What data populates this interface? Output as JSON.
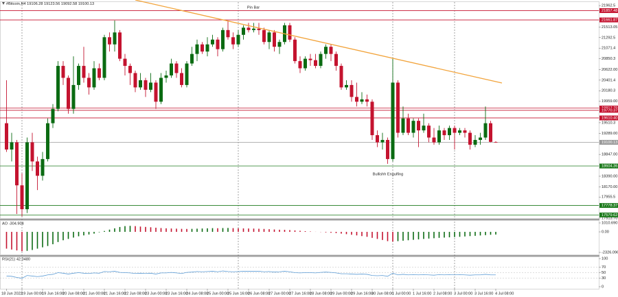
{
  "chart_data": [
    {
      "type": "candlestick",
      "title": "#Bitcoin,H4 19106.28 19123.56 19092.58 19100.13",
      "categories": [
        "18 Jun 2022",
        null,
        null,
        "19 Jun 00:00",
        null,
        null,
        null,
        "19 Jun 16:00",
        null,
        null,
        null,
        "20 Jun 08:00",
        null,
        null,
        null,
        "21 Jun 00:00",
        null,
        null,
        null,
        "21 Jun 16:00",
        null,
        null,
        null,
        "22 Jun 08:00",
        null,
        null,
        null,
        "23 Jun 00:00",
        null,
        null,
        null,
        "23 Jun 16:00",
        null,
        null,
        null,
        "24 Jun 08:00",
        null,
        null,
        null,
        "25 Jun 00:00",
        null,
        null,
        null,
        "25 Jun 16:00",
        null,
        null,
        null,
        "26 Jun 08:00",
        null,
        null,
        null,
        "27 Jun 00:00",
        null,
        null,
        null,
        "27 Jun 16:00",
        null,
        null,
        null,
        "28 Jun 08:00",
        null,
        null,
        null,
        "29 Jun 00:00",
        null,
        null,
        null,
        "29 Jun 16:00",
        null,
        null,
        null,
        "30 Jun 08:00",
        null,
        null,
        null,
        "1 Jul 00:00",
        null,
        null,
        null,
        "1 Jul 16:00",
        null,
        null,
        null,
        "2 Jul 08:00",
        null,
        null,
        null,
        "3 Jul 00:00",
        null,
        null,
        null,
        "3 Jul 16:00",
        null,
        null,
        null,
        "4 Jul 08:00"
      ],
      "open": [
        19500,
        18950,
        19100,
        18200,
        17700,
        19100,
        18700,
        18400,
        18750,
        19500,
        19800,
        20700,
        20450,
        19800,
        20300,
        20700,
        20450,
        20250,
        20650,
        20450,
        21300,
        21150,
        21400,
        20850,
        20700,
        20550,
        20250,
        20400,
        20200,
        20350,
        19950,
        20450,
        20500,
        20750,
        20550,
        20300,
        20750,
        20950,
        21150,
        21000,
        21150,
        21250,
        21050,
        21450,
        21300,
        21150,
        21350,
        21500,
        21450,
        21480,
        21450,
        21200,
        21400,
        21100,
        21200,
        21550,
        21250,
        20800,
        20650,
        20850,
        20820,
        20700,
        20950,
        21100,
        20950,
        20700,
        20250,
        20300,
        20050,
        19950,
        20000,
        19950,
        19250,
        19100,
        19150,
        18750,
        20350,
        19300,
        19600,
        19300,
        19550,
        19350,
        19450,
        19200,
        19100,
        19350,
        19250,
        19400,
        19300,
        19350,
        19300,
        19050,
        19150,
        19200,
        19500,
        19106.28
      ],
      "high": [
        20400,
        19300,
        19150,
        18450,
        19200,
        19300,
        18800,
        18900,
        19600,
        19900,
        20800,
        20800,
        20500,
        20900,
        20750,
        21100,
        20550,
        20800,
        20750,
        21350,
        21400,
        21650,
        21450,
        20950,
        20750,
        20600,
        20550,
        20450,
        20550,
        20400,
        20550,
        20600,
        20850,
        20800,
        20650,
        20800,
        21100,
        21250,
        21200,
        21300,
        21350,
        21300,
        21500,
        21650,
        21400,
        21450,
        21550,
        21600,
        21600,
        21600,
        21500,
        21450,
        21450,
        21250,
        21600,
        21600,
        21300,
        20900,
        20900,
        20950,
        20950,
        21000,
        21150,
        21150,
        21000,
        20750,
        20400,
        20400,
        20350,
        20150,
        20100,
        20000,
        19350,
        19300,
        19200,
        20850,
        20400,
        19850,
        19700,
        19600,
        19600,
        19700,
        19500,
        19400,
        19450,
        19400,
        19450,
        19450,
        19400,
        19400,
        19350,
        19250,
        19300,
        19850,
        19550,
        19123.56
      ],
      "low": [
        18900,
        18700,
        17600,
        17550,
        17620,
        18500,
        18100,
        18300,
        18700,
        19400,
        19750,
        20300,
        19700,
        19700,
        20200,
        20350,
        20100,
        20200,
        20400,
        20400,
        21000,
        21000,
        20800,
        20500,
        20300,
        20150,
        20200,
        20050,
        20150,
        19800,
        19900,
        20350,
        20450,
        20450,
        20250,
        20250,
        20700,
        20800,
        20950,
        20900,
        21100,
        20900,
        21000,
        21250,
        21050,
        21100,
        21250,
        21400,
        21400,
        21350,
        21150,
        21050,
        21000,
        20950,
        21150,
        21200,
        20750,
        20550,
        20600,
        20700,
        20650,
        20650,
        20850,
        20800,
        20600,
        20200,
        20200,
        19950,
        19850,
        19900,
        19850,
        19150,
        19000,
        18950,
        18650,
        18700,
        19200,
        19250,
        19250,
        19200,
        19000,
        19300,
        19100,
        19050,
        19050,
        19150,
        19150,
        18950,
        19250,
        19200,
        18950,
        19000,
        19050,
        19150,
        19100,
        19092.58
      ],
      "close": [
        18950,
        19100,
        18200,
        17700,
        19100,
        18700,
        18400,
        18750,
        19500,
        19800,
        20700,
        20450,
        19800,
        20300,
        20700,
        20450,
        20250,
        20650,
        20450,
        21300,
        21150,
        21400,
        20850,
        20700,
        20550,
        20250,
        20400,
        20200,
        20350,
        19950,
        20450,
        20500,
        20750,
        20550,
        20300,
        20750,
        20950,
        21150,
        21000,
        21150,
        21250,
        21050,
        21450,
        21300,
        21150,
        21350,
        21500,
        21450,
        21480,
        21450,
        21200,
        21400,
        21100,
        21200,
        21550,
        21250,
        20800,
        20650,
        20850,
        20820,
        20700,
        20950,
        21100,
        20950,
        20700,
        20250,
        20300,
        20050,
        19950,
        20000,
        19950,
        19250,
        19100,
        19150,
        18750,
        20350,
        19300,
        19600,
        19300,
        19550,
        19350,
        19450,
        19200,
        19100,
        19350,
        19250,
        19400,
        19300,
        19350,
        19300,
        19050,
        19150,
        19200,
        19500,
        19110,
        19100.13
      ],
      "up_color": "#0b6b12",
      "down_color": "#c4132f",
      "ylim": [
        17513.7,
        22036
      ],
      "yticks": [
        {
          "value": 17513.7,
          "label": "17513.70"
        },
        17955.5,
        {
          "value": 18170,
          "label": "18170.00"
        },
        {
          "value": 18390,
          "label": "18390.00"
        },
        {
          "value": 18847,
          "label": "18847.00"
        },
        {
          "value": 19289,
          "label": "19289.00"
        },
        19510.3,
        {
          "value": 19959,
          "label": "19959.00"
        },
        20180.3,
        20401.4,
        {
          "value": 20622,
          "label": "20622.00"
        },
        20850.3,
        21071.4,
        21292.5,
        21513.05,
        21962.5
      ],
      "levels": [
        {
          "value": 21857.48,
          "color": "#c4132f"
        },
        {
          "value": 21661.87,
          "color": "#c4132f"
        },
        {
          "value": 19817.79,
          "color": "#c4132f"
        },
        {
          "value": 19770.37,
          "color": "#c4132f"
        },
        {
          "value": 19610.4,
          "label": "19610.40",
          "color": "#c4132f"
        },
        {
          "value": 19100.13,
          "color": "#9a9a9a"
        },
        {
          "value": 18604.36,
          "color": "#1c7a1c"
        },
        {
          "value": 17778.37,
          "color": "#1c7a1c"
        },
        {
          "value": 17579.62,
          "color": "#1c7a1c"
        }
      ],
      "annotations": [
        "Pin Bar",
        "Bullishh Engulfing"
      ]
    },
    {
      "type": "histogram-oscillator",
      "title": "AO -304.904",
      "values": [
        -1900,
        -2000,
        -2100,
        -2200,
        -2150,
        -2050,
        -1900,
        -1750,
        -1600,
        -1400,
        -1150,
        -950,
        -800,
        -650,
        -500,
        -400,
        -300,
        -200,
        -50,
        100,
        250,
        400,
        550,
        650,
        680,
        650,
        600,
        560,
        520,
        470,
        430,
        400,
        380,
        360,
        340,
        330,
        340,
        360,
        380,
        400,
        420,
        410,
        430,
        440,
        420,
        400,
        390,
        380,
        370,
        350,
        330,
        300,
        270,
        240,
        230,
        200,
        160,
        120,
        80,
        40,
        10,
        -20,
        -60,
        -100,
        -140,
        -200,
        -260,
        -330,
        -400,
        -480,
        -560,
        -680,
        -800,
        -920,
        -1050,
        -1100,
        -1050,
        -1000,
        -950,
        -900,
        -850,
        -800,
        -760,
        -720,
        -680,
        -650,
        -620,
        -590,
        -560,
        -520,
        -480,
        -450,
        -410,
        -370,
        -330,
        -304.904
      ],
      "up_color": "#0b6b12",
      "down_color": "#c4132f",
      "ylim": [
        -2326.096,
        1010.69
      ],
      "yticks": [
        -2326.096,
        {
          "value": 0,
          "label": "0.00"
        },
        {
          "value": 1010.69,
          "label": "1010.690"
        }
      ]
    },
    {
      "type": "line",
      "title": "RSI(21) 42.0480",
      "values": [
        38,
        37,
        33,
        30,
        40,
        38,
        36,
        38,
        42,
        44,
        50,
        48,
        45,
        48,
        50,
        48,
        47,
        49,
        48,
        54,
        53,
        55,
        51,
        50,
        49,
        47,
        48,
        47,
        48,
        45,
        49,
        49,
        51,
        49,
        47,
        51,
        52,
        54,
        53,
        54,
        55,
        53,
        56,
        54,
        53,
        54,
        55,
        55,
        55,
        55,
        53,
        54,
        52,
        53,
        55,
        53,
        50,
        49,
        50,
        50,
        49,
        51,
        52,
        51,
        49,
        46,
        46,
        45,
        44,
        45,
        44,
        40,
        39,
        40,
        37,
        48,
        42,
        44,
        42,
        43,
        42,
        43,
        42,
        41,
        43,
        42,
        43,
        42,
        43,
        42,
        41,
        42,
        42,
        44,
        42,
        42.048
      ],
      "color": "#5b9bd5",
      "ylim": [
        0,
        100
      ],
      "yticks": [
        0,
        30,
        50,
        70,
        100
      ],
      "grid": true
    }
  ]
}
